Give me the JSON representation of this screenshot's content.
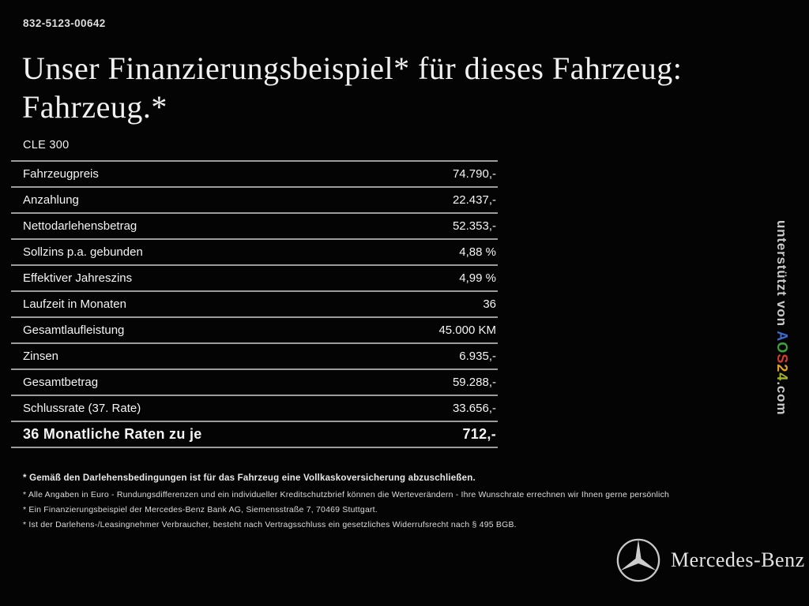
{
  "header": {
    "code": "832-5123-00642",
    "title_line1": "Unser Finanzierungsbeispiel* für dieses Fahrzeug:",
    "title_line2": "Fahrzeug.*",
    "model": "CLE 300"
  },
  "finance_table": {
    "rows": [
      {
        "label": "Fahrzeugpreis",
        "value": "74.790,-",
        "emphasis": false
      },
      {
        "label": "Anzahlung",
        "value": "22.437,-",
        "emphasis": false
      },
      {
        "label": "Nettodarlehensbetrag",
        "value": "52.353,-",
        "emphasis": false
      },
      {
        "label": "Sollzins p.a. gebunden",
        "value": "4,88 %",
        "emphasis": false
      },
      {
        "label": "Effektiver Jahreszins",
        "value": "4,99 %",
        "emphasis": false
      },
      {
        "label": "Laufzeit in Monaten",
        "value": "36",
        "emphasis": false
      },
      {
        "label": "Gesamtlaufleistung",
        "value": "45.000 KM",
        "emphasis": false
      },
      {
        "label": "Zinsen",
        "value": "6.935,-",
        "emphasis": false
      },
      {
        "label": "Gesamtbetrag",
        "value": "59.288,-",
        "emphasis": false
      },
      {
        "label": "Schlussrate (37. Rate)",
        "value": "33.656,-",
        "emphasis": false
      },
      {
        "label": "36 Monatliche Raten zu je",
        "value": "712,-",
        "emphasis": true
      }
    ]
  },
  "footnotes": [
    {
      "text": "* Gemäß den Darlehensbedingungen ist für das Fahrzeug eine Vollkaskoversicherung abzuschließen.",
      "bold": true
    },
    {
      "text": "* Alle Angaben in Euro - Rundungsdifferenzen und ein individueller Kreditschutzbrief können die Werteverändern - Ihre Wunschrate errechnen wir Ihnen gerne persönlich",
      "bold": false
    },
    {
      "text": "* Ein Finanzierungsbeispiel der Mercedes-Benz Bank AG, Siemensstraße 7, 70469 Stuttgart.",
      "bold": false
    },
    {
      "text": "* Ist der Darlehens-/Leasingnehmer Verbraucher, besteht nach Vertragsschluss ein gesetzliches Widerrufsrecht nach § 495 BGB.",
      "bold": false
    }
  ],
  "watermark": {
    "prefix": "unterstützt von ",
    "brand_letters": [
      {
        "ch": "A",
        "color": "#3f6ad0"
      },
      {
        "ch": "O",
        "color": "#3da23d"
      },
      {
        "ch": "S",
        "color": "#d43c2a"
      },
      {
        "ch": "2",
        "color": "#e2a31c"
      },
      {
        "ch": "4",
        "color": "#a8b622"
      }
    ],
    "suffix": ".com"
  },
  "footer": {
    "brand": "Mercedes-Benz",
    "logo_icon": "mercedes-star-icon"
  },
  "colors": {
    "background": "#040404",
    "table_line": "#9c9c9c",
    "text": "#f1f1f1"
  }
}
